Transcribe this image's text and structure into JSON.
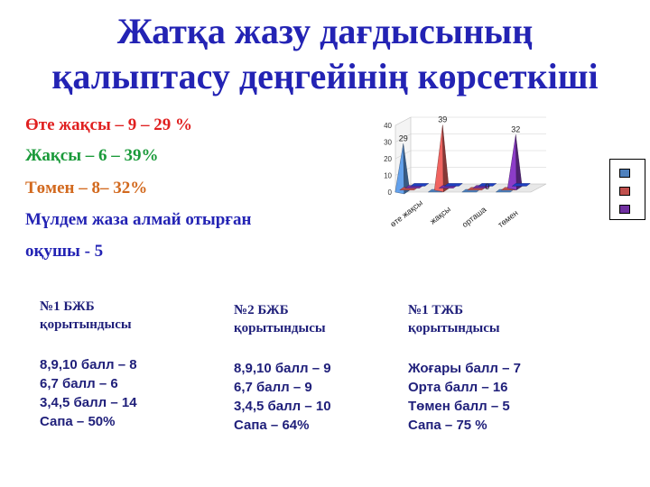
{
  "title": {
    "line1": "Жатқа жазу дағдысының",
    "line2": "қалыптасу деңгейінің көрсеткіші"
  },
  "stats": [
    {
      "text": "Өте жақсы – 9 – 29 %",
      "color": "#e02020"
    },
    {
      "text": "Жақсы – 6 – 39%",
      "color": "#1a9a3a"
    },
    {
      "text": "Төмен – 8– 32%",
      "color": "#d2691e"
    },
    {
      "text": "Мүлдем жаза алмай отырған",
      "color": "#2323b4"
    },
    {
      "text": "оқушы - 5",
      "color": "#2323b4"
    }
  ],
  "columns": [
    {
      "head1": "№1 БЖБ",
      "head2": "қорытындысы",
      "lines": [
        "8,9,10 балл – 8",
        "6,7 балл – 6",
        "3,4,5 балл – 14",
        "Сапа – 50%"
      ]
    },
    {
      "head1": "№2  БЖБ",
      "head2": "қорытындысы",
      "lines": [
        "8,9,10 балл – 9",
        "6,7 балл – 9",
        "3,4,5 балл – 10",
        "Сапа – 64%"
      ]
    },
    {
      "head1": "№1 ТЖБ",
      "head2": "қорытындысы",
      "lines": [
        "Жоғары балл – 7",
        "Орта  балл – 16",
        "Төмен  балл – 5",
        "Сапа – 75 %"
      ]
    }
  ],
  "chart_data": {
    "type": "bar",
    "categories": [
      "өте жақсы",
      "жақсы",
      "орташа",
      "төмен"
    ],
    "series": [
      {
        "values": [
          29,
          0,
          0,
          0
        ],
        "color": "#4f81bd"
      },
      {
        "values": [
          0,
          39,
          0,
          0
        ],
        "color": "#c0504d"
      },
      {
        "values": [
          0,
          0,
          0,
          32
        ],
        "color": "#7030a0"
      },
      {
        "values": [
          0,
          0,
          0,
          0
        ],
        "color": "#1f3fc0"
      }
    ],
    "data_labels": [
      {
        "category": "өте жақсы",
        "value": "29"
      },
      {
        "category": "жақсы",
        "value": "39"
      },
      {
        "category": "орташа",
        "value": "0"
      },
      {
        "category": "төмен",
        "value": "32"
      }
    ],
    "yticks": [
      "0",
      "10",
      "20",
      "30",
      "40"
    ],
    "ylim": [
      0,
      40
    ],
    "legend": "right"
  }
}
